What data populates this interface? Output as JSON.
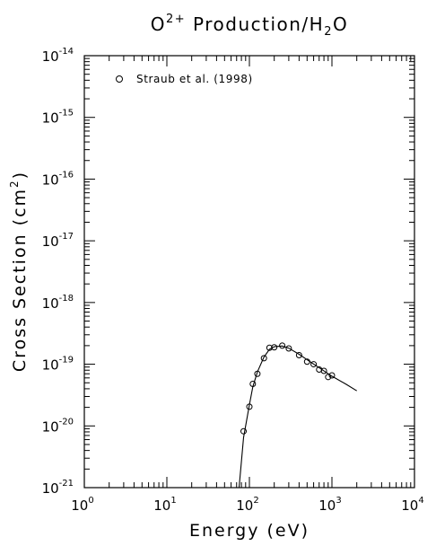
{
  "chart_data": {
    "type": "scatter",
    "title_main": "O",
    "title_sup": "2+",
    "title_rest": " Production/H",
    "title_sub": "2",
    "title_end": "O",
    "xlabel": "Energy (eV)",
    "ylabel_main": "Cross Section (cm",
    "ylabel_sup": "2",
    "ylabel_end": ")",
    "xscale": "log",
    "yscale": "log",
    "xlim": [
      1,
      10000
    ],
    "ylim": [
      1e-21,
      1e-14
    ],
    "x_ticks": [
      {
        "value": 1,
        "base": "10",
        "exp": "0"
      },
      {
        "value": 10,
        "base": "10",
        "exp": "1"
      },
      {
        "value": 100,
        "base": "10",
        "exp": "2"
      },
      {
        "value": 1000,
        "base": "10",
        "exp": "3"
      },
      {
        "value": 10000,
        "base": "10",
        "exp": "4"
      }
    ],
    "y_ticks": [
      {
        "value": 1e-21,
        "base": "10",
        "exp": "-21"
      },
      {
        "value": 1e-20,
        "base": "10",
        "exp": "-20"
      },
      {
        "value": 1e-19,
        "base": "10",
        "exp": "-19"
      },
      {
        "value": 1e-18,
        "base": "10",
        "exp": "-18"
      },
      {
        "value": 1e-17,
        "base": "10",
        "exp": "-17"
      },
      {
        "value": 1e-16,
        "base": "10",
        "exp": "-16"
      },
      {
        "value": 1e-15,
        "base": "10",
        "exp": "-15"
      },
      {
        "value": 1e-14,
        "base": "10",
        "exp": "-14"
      }
    ],
    "legend": {
      "label": "Straub et al. (1998)",
      "placement": "top-left",
      "marker": "open-circle"
    },
    "series": [
      {
        "name": "Straub et al. (1998)",
        "marker": "open-circle",
        "x": [
          85,
          100,
          110,
          125,
          150,
          175,
          200,
          250,
          300,
          400,
          500,
          600,
          700,
          800,
          900,
          1000
        ],
        "y": [
          8.2e-21,
          2.05e-20,
          4.8e-20,
          7e-20,
          1.25e-19,
          1.85e-19,
          1.88e-19,
          2e-19,
          1.8e-19,
          1.4e-19,
          1.1e-19,
          1e-19,
          8.2e-20,
          7.8e-20,
          6.2e-20,
          6.6e-20
        ]
      },
      {
        "name": "",
        "style": "line",
        "x": [
          75,
          85,
          100,
          110,
          125,
          150,
          175,
          200,
          250,
          300,
          400,
          500,
          700,
          1000,
          1500,
          2000
        ],
        "y": [
          1e-21,
          6.5e-21,
          2.2e-20,
          4.3e-20,
          7.5e-20,
          1.3e-19,
          1.75e-19,
          1.92e-19,
          1.97e-19,
          1.82e-19,
          1.45e-19,
          1.18e-19,
          8.8e-20,
          6.4e-20,
          4.7e-20,
          3.7e-20
        ]
      }
    ]
  }
}
